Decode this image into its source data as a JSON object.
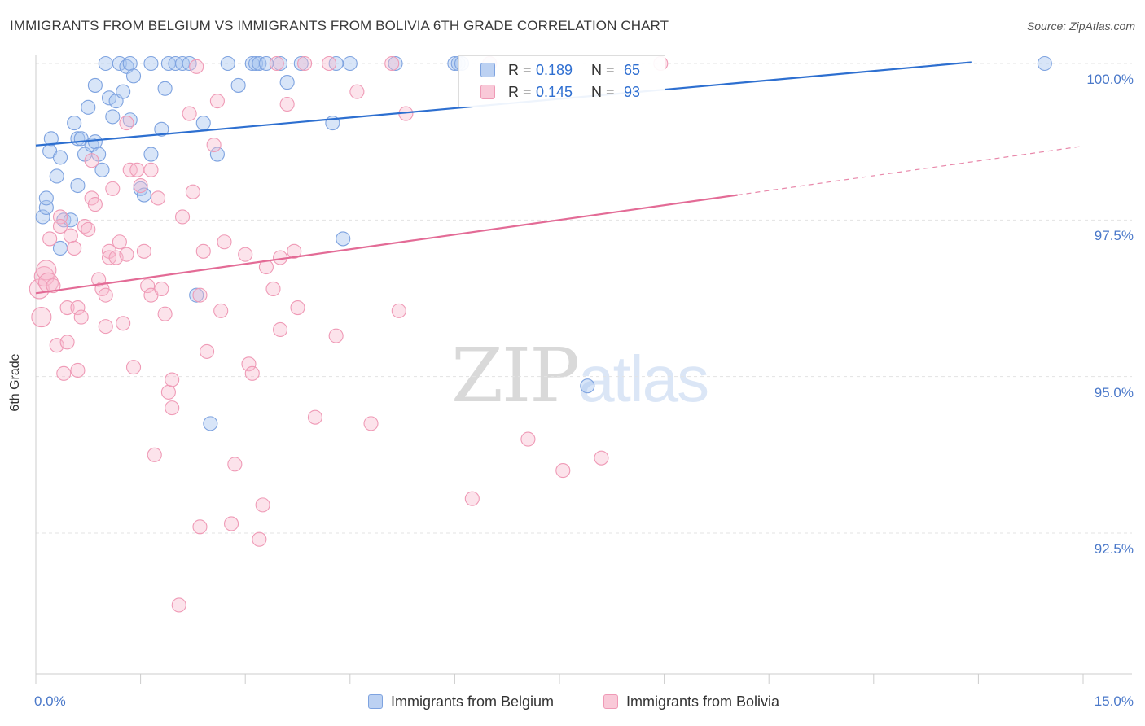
{
  "header": {
    "title": "IMMIGRANTS FROM BELGIUM VS IMMIGRANTS FROM BOLIVIA 6TH GRADE CORRELATION CHART",
    "source": "Source: ZipAtlas.com"
  },
  "watermark": {
    "zip": "ZIP",
    "atlas": "atlas"
  },
  "colors": {
    "belgium": "#8fb3e8",
    "belgium_line": "#2d6fd0",
    "bolivia": "#f4a9c0",
    "bolivia_line": "#e36b96",
    "axis_text": "#4a78c9",
    "grid": "#e3e3e3"
  },
  "stats": {
    "belgium": {
      "r_label": "R =",
      "r_value": "0.189",
      "n_label": "N =",
      "n_value": "65"
    },
    "bolivia": {
      "r_label": "R =",
      "r_value": "0.145",
      "n_label": "N =",
      "n_value": "93"
    }
  },
  "legend": {
    "belgium": "Immigrants from Belgium",
    "bolivia": "Immigrants from Bolivia"
  },
  "chart_data": {
    "type": "scatter",
    "title": "IMMIGRANTS FROM BELGIUM VS IMMIGRANTS FROM BOLIVIA 6TH GRADE CORRELATION CHART",
    "xlabel": "",
    "ylabel": "6th Grade",
    "xlim": [
      0,
      15
    ],
    "ylim": [
      90.0,
      100.4
    ],
    "x_tick_labels": [
      "0.0%",
      "15.0%"
    ],
    "y_ticks": [
      {
        "value": 92.5,
        "label": "92.5%"
      },
      {
        "value": 95.0,
        "label": "95.0%"
      },
      {
        "value": 97.5,
        "label": "97.5%"
      },
      {
        "value": 100.0,
        "label": "100.0%"
      }
    ],
    "series": [
      {
        "name": "Immigrants from Belgium",
        "trend": {
          "x": [
            0.0,
            13.4
          ],
          "y": [
            98.69,
            100.02
          ]
        },
        "points": [
          [
            0.1,
            97.55
          ],
          [
            0.15,
            97.7
          ],
          [
            0.15,
            97.85
          ],
          [
            0.2,
            98.6
          ],
          [
            0.22,
            98.8
          ],
          [
            0.3,
            98.2
          ],
          [
            0.35,
            97.05
          ],
          [
            0.35,
            98.5
          ],
          [
            0.4,
            97.5
          ],
          [
            0.5,
            97.5
          ],
          [
            0.55,
            99.05
          ],
          [
            0.6,
            98.8
          ],
          [
            0.6,
            98.05
          ],
          [
            0.65,
            98.8
          ],
          [
            0.7,
            98.55
          ],
          [
            0.75,
            99.3
          ],
          [
            0.8,
            98.7
          ],
          [
            0.85,
            99.65
          ],
          [
            0.85,
            98.75
          ],
          [
            0.9,
            98.55
          ],
          [
            0.95,
            98.3
          ],
          [
            1.0,
            100.0
          ],
          [
            1.05,
            99.45
          ],
          [
            1.1,
            99.15
          ],
          [
            1.15,
            99.4
          ],
          [
            1.2,
            100.0
          ],
          [
            1.25,
            99.55
          ],
          [
            1.3,
            99.95
          ],
          [
            1.35,
            99.1
          ],
          [
            1.35,
            100.0
          ],
          [
            1.4,
            99.8
          ],
          [
            1.5,
            98.0
          ],
          [
            1.55,
            97.9
          ],
          [
            1.65,
            98.55
          ],
          [
            1.65,
            100.0
          ],
          [
            1.8,
            98.95
          ],
          [
            1.85,
            99.6
          ],
          [
            1.9,
            100.0
          ],
          [
            2.0,
            100.0
          ],
          [
            2.1,
            100.0
          ],
          [
            2.2,
            100.0
          ],
          [
            2.3,
            96.3
          ],
          [
            2.4,
            99.05
          ],
          [
            2.5,
            94.25
          ],
          [
            2.6,
            98.55
          ],
          [
            2.75,
            100.0
          ],
          [
            2.9,
            99.65
          ],
          [
            3.1,
            100.0
          ],
          [
            3.15,
            100.0
          ],
          [
            3.2,
            100.0
          ],
          [
            3.3,
            100.0
          ],
          [
            3.5,
            100.0
          ],
          [
            3.6,
            99.7
          ],
          [
            3.8,
            100.0
          ],
          [
            4.25,
            99.05
          ],
          [
            4.3,
            100.0
          ],
          [
            4.4,
            97.2
          ],
          [
            4.5,
            100.0
          ],
          [
            5.15,
            100.0
          ],
          [
            6.0,
            100.0
          ],
          [
            6.05,
            100.0
          ],
          [
            6.1,
            100.0
          ],
          [
            6.5,
            100.0
          ],
          [
            7.9,
            94.85
          ],
          [
            14.45,
            100.0
          ]
        ]
      },
      {
        "name": "Immigrants from Bolivia",
        "trend": {
          "x": [
            0.0,
            10.05,
            15.0
          ],
          "y": [
            96.33,
            97.9,
            98.68
          ],
          "solid_until_x": 10.05
        },
        "points": [
          [
            0.05,
            96.4
          ],
          [
            0.08,
            95.95
          ],
          [
            0.12,
            96.6
          ],
          [
            0.15,
            96.7
          ],
          [
            0.18,
            96.5
          ],
          [
            0.2,
            97.2
          ],
          [
            0.25,
            96.45
          ],
          [
            0.3,
            95.5
          ],
          [
            0.35,
            97.55
          ],
          [
            0.35,
            97.4
          ],
          [
            0.4,
            95.05
          ],
          [
            0.45,
            96.1
          ],
          [
            0.45,
            95.55
          ],
          [
            0.5,
            97.25
          ],
          [
            0.55,
            97.05
          ],
          [
            0.6,
            95.1
          ],
          [
            0.6,
            96.1
          ],
          [
            0.65,
            95.95
          ],
          [
            0.7,
            97.4
          ],
          [
            0.75,
            97.35
          ],
          [
            0.8,
            98.45
          ],
          [
            0.8,
            97.85
          ],
          [
            0.85,
            97.75
          ],
          [
            0.9,
            96.55
          ],
          [
            0.95,
            96.4
          ],
          [
            1.0,
            96.3
          ],
          [
            1.0,
            95.8
          ],
          [
            1.05,
            97.0
          ],
          [
            1.05,
            96.9
          ],
          [
            1.1,
            98.0
          ],
          [
            1.15,
            96.9
          ],
          [
            1.2,
            97.15
          ],
          [
            1.25,
            95.85
          ],
          [
            1.3,
            99.05
          ],
          [
            1.3,
            96.95
          ],
          [
            1.35,
            98.3
          ],
          [
            1.4,
            95.15
          ],
          [
            1.45,
            98.3
          ],
          [
            1.5,
            98.05
          ],
          [
            1.55,
            97.0
          ],
          [
            1.6,
            96.45
          ],
          [
            1.65,
            96.3
          ],
          [
            1.65,
            98.3
          ],
          [
            1.7,
            93.75
          ],
          [
            1.75,
            97.85
          ],
          [
            1.8,
            96.4
          ],
          [
            1.85,
            96.0
          ],
          [
            1.9,
            94.75
          ],
          [
            1.95,
            94.5
          ],
          [
            1.95,
            94.95
          ],
          [
            2.05,
            91.35
          ],
          [
            2.1,
            97.55
          ],
          [
            2.2,
            99.2
          ],
          [
            2.25,
            97.95
          ],
          [
            2.3,
            99.95
          ],
          [
            2.35,
            92.6
          ],
          [
            2.35,
            96.3
          ],
          [
            2.4,
            97.0
          ],
          [
            2.45,
            95.4
          ],
          [
            2.55,
            98.7
          ],
          [
            2.6,
            99.4
          ],
          [
            2.65,
            96.05
          ],
          [
            2.7,
            97.15
          ],
          [
            2.8,
            92.65
          ],
          [
            2.85,
            93.6
          ],
          [
            3.0,
            96.95
          ],
          [
            3.05,
            95.2
          ],
          [
            3.1,
            95.05
          ],
          [
            3.2,
            92.4
          ],
          [
            3.25,
            92.95
          ],
          [
            3.3,
            96.75
          ],
          [
            3.4,
            96.4
          ],
          [
            3.45,
            100.0
          ],
          [
            3.5,
            96.9
          ],
          [
            3.5,
            95.75
          ],
          [
            3.6,
            99.35
          ],
          [
            3.7,
            97.0
          ],
          [
            3.75,
            96.1
          ],
          [
            3.85,
            100.0
          ],
          [
            4.0,
            94.35
          ],
          [
            4.2,
            100.0
          ],
          [
            4.3,
            95.65
          ],
          [
            4.6,
            99.55
          ],
          [
            4.8,
            94.25
          ],
          [
            5.1,
            100.0
          ],
          [
            5.2,
            96.05
          ],
          [
            5.3,
            99.2
          ],
          [
            6.25,
            93.05
          ],
          [
            6.5,
            100.0
          ],
          [
            7.05,
            94.0
          ],
          [
            7.55,
            93.5
          ],
          [
            8.1,
            93.7
          ],
          [
            8.95,
            100.0
          ]
        ]
      }
    ]
  }
}
